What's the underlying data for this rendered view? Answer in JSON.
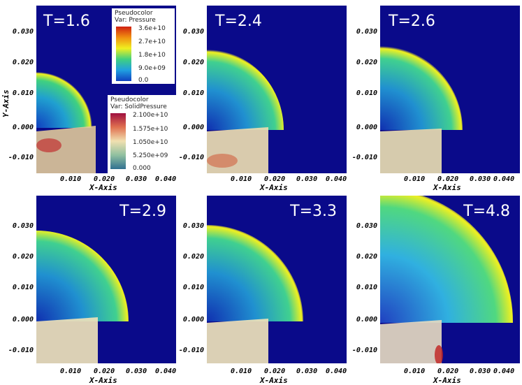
{
  "panels": [
    {
      "time_label": "T=1.6"
    },
    {
      "time_label": "T=2.4"
    },
    {
      "time_label": "T=2.6"
    },
    {
      "time_label": "T=2.9"
    },
    {
      "time_label": "T=3.3"
    },
    {
      "time_label": "T=4.8"
    }
  ],
  "axes": {
    "y_title": "Y-Axis",
    "x_title": "X-Axis",
    "y_ticks": [
      "0.030",
      "0.020",
      "0.010",
      "0.000",
      "-0.010"
    ],
    "x_ticks": [
      "0.010",
      "0.020",
      "0.030",
      "0.040"
    ]
  },
  "legend_pressure": {
    "title_line1": "Pseudocolor",
    "title_line2": "Var: Pressure",
    "values": [
      "3.6e+10",
      "2.7e+10",
      "1.8e+10",
      "9.0e+09",
      "0.0"
    ]
  },
  "legend_solid": {
    "title_line1": "Pseudocolor",
    "title_line2": "Var: SolidPressure",
    "values": [
      "2.100e+10",
      "1.575e+10",
      "1.050e+10",
      "5.250e+09",
      "0.000"
    ]
  },
  "colors": {
    "background": "#0a0a8a",
    "shock_front": "#f0f020",
    "solid_region": "#e8e0b0"
  }
}
